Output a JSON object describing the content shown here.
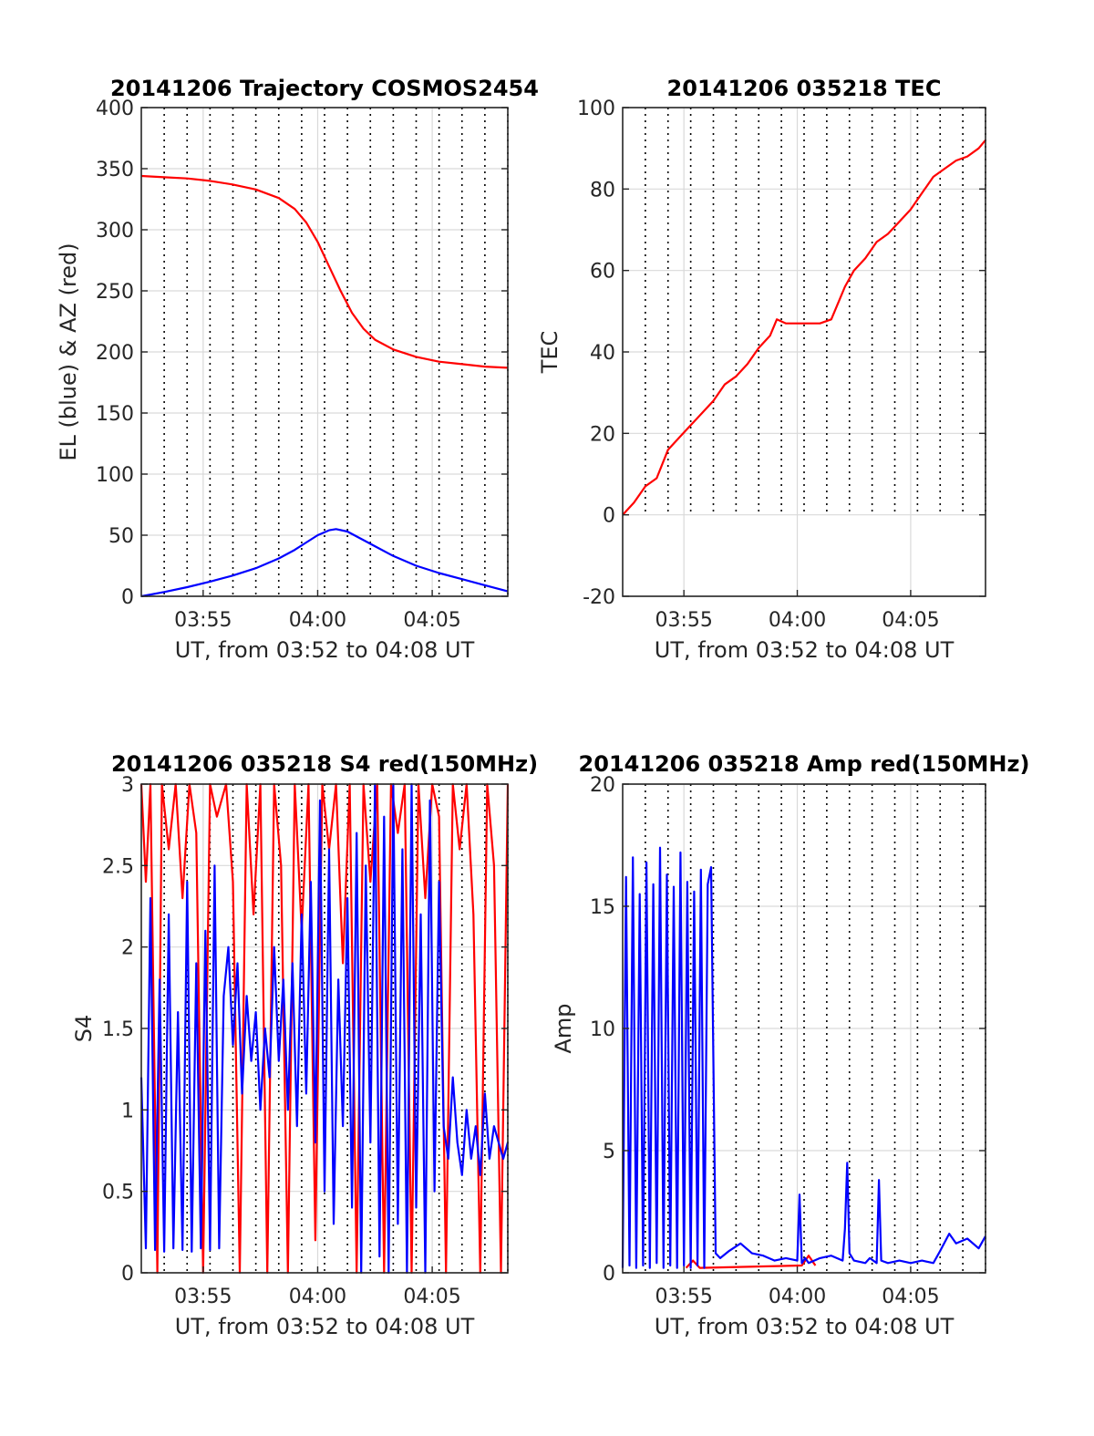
{
  "figure": {
    "panels": [
      {
        "title": "20141206 Trajectory COSMOS2454",
        "ylabel": "EL (blue) & AZ (red)",
        "xlabel": "UT, from 03:52 to 04:08 UT"
      },
      {
        "title": "20141206 035218 TEC",
        "ylabel": "TEC",
        "xlabel": "UT, from 03:52 to 04:08 UT"
      },
      {
        "title": "20141206 035218 S4 red(150MHz)",
        "ylabel": "S4",
        "xlabel": "UT, from 03:52 to 04:08 UT"
      },
      {
        "title": "20141206 035218 Amp red(150MHz)",
        "ylabel": "Amp",
        "xlabel": "UT, from 03:52 to 04:08 UT"
      }
    ]
  },
  "chart_data": [
    {
      "type": "line",
      "title": "20141206 Trajectory COSMOS2454",
      "xlabel": "UT, from 03:52 to 04:08 UT",
      "ylabel": "EL (blue) & AZ (red)",
      "xlim_minutes": [
        232.3,
        248.3
      ],
      "xticks": [
        {
          "value": 235,
          "label": "03:55"
        },
        {
          "value": 240,
          "label": "04:00"
        },
        {
          "value": 245,
          "label": "04:05"
        }
      ],
      "ylim": [
        0,
        400
      ],
      "yticks": [
        {
          "value": 0,
          "label": "0"
        },
        {
          "value": 50,
          "label": "50"
        },
        {
          "value": 100,
          "label": "100"
        },
        {
          "value": 150,
          "label": "150"
        },
        {
          "value": 200,
          "label": "200"
        },
        {
          "value": 250,
          "label": "250"
        },
        {
          "value": 300,
          "label": "300"
        },
        {
          "value": 350,
          "label": "350"
        },
        {
          "value": 400,
          "label": "400"
        }
      ],
      "grid": true,
      "vertical_dotted_lines_minutes": [
        233.3,
        234.3,
        235.3,
        236.3,
        237.3,
        238.3,
        239.3,
        240.3,
        241.3,
        242.3,
        243.3,
        244.3,
        245.3,
        246.3,
        247.3,
        248.3
      ],
      "series": [
        {
          "color": "#ff0000",
          "x": [
            232.3,
            233.3,
            234.3,
            235.3,
            236.3,
            237.3,
            238.3,
            239.0,
            239.5,
            240.0,
            240.5,
            241.0,
            241.5,
            242.0,
            242.5,
            243.3,
            244.3,
            245.3,
            246.3,
            247.3,
            248.3
          ],
          "y": [
            344,
            343,
            342,
            340,
            337,
            333,
            326,
            317,
            306,
            290,
            270,
            250,
            232,
            219,
            210,
            202,
            196,
            192,
            190,
            188,
            187
          ]
        },
        {
          "color": "#0000ff",
          "x": [
            232.3,
            233.3,
            234.3,
            235.3,
            236.3,
            237.3,
            238.3,
            239.0,
            239.5,
            240.0,
            240.5,
            240.8,
            241.3,
            242.0,
            242.5,
            243.3,
            244.3,
            245.3,
            246.3,
            247.3,
            248.3
          ],
          "y": [
            0,
            3.5,
            7.5,
            12,
            17,
            23,
            31,
            38,
            44,
            50,
            54,
            55,
            53,
            46,
            41,
            33,
            25,
            19,
            14,
            9,
            4
          ]
        }
      ]
    },
    {
      "type": "line",
      "title": "20141206 035218 TEC",
      "xlabel": "UT, from 03:52 to 04:08 UT",
      "ylabel": "TEC",
      "xlim_minutes": [
        232.3,
        248.3
      ],
      "xticks": [
        {
          "value": 235,
          "label": "03:55"
        },
        {
          "value": 240,
          "label": "04:00"
        },
        {
          "value": 245,
          "label": "04:05"
        }
      ],
      "ylim": [
        -20,
        100
      ],
      "yticks": [
        {
          "value": -20,
          "label": "-20"
        },
        {
          "value": 0,
          "label": "0"
        },
        {
          "value": 20,
          "label": "20"
        },
        {
          "value": 40,
          "label": "40"
        },
        {
          "value": 60,
          "label": "60"
        },
        {
          "value": 80,
          "label": "80"
        },
        {
          "value": 100,
          "label": "100"
        }
      ],
      "grid": true,
      "vertical_dotted_lines_minutes": [
        233.3,
        234.3,
        235.3,
        236.3,
        237.3,
        238.3,
        239.3,
        240.3,
        241.3,
        242.3,
        243.3,
        244.3,
        245.3,
        246.3,
        247.3,
        248.3
      ],
      "dotted_lines_above_y": 0,
      "series": [
        {
          "color": "#ff0000",
          "x": [
            232.3,
            232.8,
            233.3,
            233.8,
            234.3,
            234.8,
            235.3,
            235.8,
            236.3,
            236.8,
            237.3,
            237.8,
            238.3,
            238.8,
            239.1,
            239.5,
            240.0,
            240.5,
            241.0,
            241.5,
            241.8,
            242.1,
            242.5,
            243.0,
            243.5,
            244.0,
            244.5,
            245.0,
            245.5,
            246.0,
            246.5,
            247.0,
            247.5,
            248.0,
            248.3
          ],
          "y": [
            0,
            3,
            7,
            9,
            16,
            19,
            22,
            25,
            28,
            32,
            34,
            37,
            41,
            44,
            48,
            47,
            47,
            47,
            47,
            48,
            52,
            56,
            60,
            63,
            67,
            69,
            72,
            75,
            79,
            83,
            85,
            87,
            88,
            90,
            92
          ]
        }
      ]
    },
    {
      "type": "line",
      "title": "20141206 035218 S4 red(150MHz)",
      "xlabel": "UT, from 03:52 to 04:08 UT",
      "ylabel": "S4",
      "xlim_minutes": [
        232.3,
        248.3
      ],
      "xticks": [
        {
          "value": 235,
          "label": "03:55"
        },
        {
          "value": 240,
          "label": "04:00"
        },
        {
          "value": 245,
          "label": "04:05"
        }
      ],
      "ylim": [
        0,
        3
      ],
      "yticks": [
        {
          "value": 0,
          "label": "0"
        },
        {
          "value": 0.5,
          "label": "0.5"
        },
        {
          "value": 1,
          "label": "1"
        },
        {
          "value": 1.5,
          "label": "1.5"
        },
        {
          "value": 2,
          "label": "2"
        },
        {
          "value": 2.5,
          "label": "2.5"
        },
        {
          "value": 3,
          "label": "3"
        }
      ],
      "grid": true,
      "vertical_dotted_lines_minutes": [
        233.3,
        234.3,
        235.3,
        236.3,
        237.3,
        238.3,
        239.3,
        240.3,
        241.3,
        242.3,
        243.3,
        244.3,
        245.3,
        246.3,
        247.3,
        248.3
      ],
      "series": [
        {
          "color": "#ff0000",
          "x": [
            232.3,
            232.5,
            232.7,
            233.0,
            233.2,
            233.5,
            233.8,
            234.1,
            234.4,
            234.7,
            235.0,
            235.3,
            235.6,
            236.0,
            236.3,
            236.6,
            236.9,
            237.2,
            237.5,
            237.8,
            238.1,
            238.4,
            238.7,
            239.0,
            239.3,
            239.6,
            239.9,
            240.2,
            240.5,
            240.8,
            241.1,
            241.4,
            241.7,
            242.0,
            242.3,
            242.6,
            242.9,
            243.2,
            243.5,
            243.8,
            244.1,
            244.4,
            244.7,
            245.0,
            245.3,
            245.6,
            245.9,
            246.2,
            246.5,
            246.8,
            247.1,
            247.4,
            247.7,
            248.0,
            248.3
          ],
          "y": [
            3,
            2.4,
            3,
            0,
            3,
            2.6,
            3,
            2.3,
            3,
            2.7,
            0,
            3,
            2.8,
            3,
            2.4,
            0,
            3,
            2.2,
            3,
            0,
            3,
            2.5,
            0,
            3,
            2.1,
            3,
            0.2,
            3,
            2.6,
            3,
            1.9,
            3,
            0,
            3,
            2.4,
            3,
            0,
            3,
            2.7,
            3,
            0,
            3,
            2.3,
            3,
            2.8,
            0,
            3,
            2.6,
            3,
            2.2,
            0,
            3,
            2.5,
            0,
            3
          ]
        },
        {
          "color": "#0000ff",
          "x": [
            232.3,
            232.5,
            232.7,
            232.9,
            233.1,
            233.3,
            233.5,
            233.7,
            233.9,
            234.1,
            234.3,
            234.5,
            234.7,
            234.9,
            235.1,
            235.3,
            235.5,
            235.7,
            235.9,
            236.1,
            236.3,
            236.5,
            236.7,
            236.9,
            237.1,
            237.3,
            237.5,
            237.7,
            237.9,
            238.1,
            238.3,
            238.5,
            238.7,
            238.9,
            239.1,
            239.3,
            239.5,
            239.7,
            239.9,
            240.1,
            240.3,
            240.5,
            240.7,
            240.9,
            241.1,
            241.3,
            241.5,
            241.7,
            241.9,
            242.1,
            242.3,
            242.5,
            242.7,
            242.9,
            243.1,
            243.3,
            243.5,
            243.7,
            243.9,
            244.1,
            244.3,
            244.5,
            244.7,
            244.9,
            245.1,
            245.3,
            245.5,
            245.7,
            245.9,
            246.1,
            246.3,
            246.5,
            246.7,
            246.9,
            247.1,
            247.3,
            247.5,
            247.7,
            247.9,
            248.1,
            248.3
          ],
          "y": [
            1.2,
            0.15,
            2.3,
            0.14,
            1.8,
            0.13,
            2.2,
            0.15,
            1.6,
            0.14,
            2.4,
            0.13,
            1.9,
            0.15,
            2.1,
            0.14,
            2.5,
            0.15,
            1.7,
            2.0,
            1.4,
            1.9,
            1.1,
            1.7,
            1.3,
            1.6,
            1.0,
            1.5,
            1.2,
            2.0,
            1.3,
            1.8,
            1.0,
            1.9,
            0.9,
            2.2,
            1.1,
            2.4,
            0.8,
            2.9,
            0.5,
            2.6,
            0.3,
            1.8,
            0.9,
            2.3,
            0.4,
            2.7,
            0.0,
            2.5,
            0.8,
            3.0,
            0.1,
            2.8,
            0.0,
            3.0,
            0.3,
            2.6,
            0.0,
            3.0,
            0.4,
            2.2,
            0.0,
            2.9,
            0.5,
            2.4,
            0.9,
            0.7,
            1.2,
            0.8,
            0.6,
            1.0,
            0.7,
            0.9,
            0.6,
            1.1,
            0.7,
            0.9,
            0.8,
            0.7,
            0.8
          ]
        }
      ]
    },
    {
      "type": "line",
      "title": "20141206 035218 Amp red(150MHz)",
      "xlabel": "UT, from 03:52 to 04:08 UT",
      "ylabel": "Amp",
      "xlim_minutes": [
        232.3,
        248.3
      ],
      "xticks": [
        {
          "value": 235,
          "label": "03:55"
        },
        {
          "value": 240,
          "label": "04:00"
        },
        {
          "value": 245,
          "label": "04:05"
        }
      ],
      "ylim": [
        0,
        20
      ],
      "yticks": [
        {
          "value": 0,
          "label": "0"
        },
        {
          "value": 5,
          "label": "5"
        },
        {
          "value": 10,
          "label": "10"
        },
        {
          "value": 15,
          "label": "15"
        },
        {
          "value": 20,
          "label": "20"
        }
      ],
      "grid": true,
      "vertical_dotted_lines_minutes": [
        233.3,
        234.3,
        235.3,
        236.3,
        237.3,
        238.3,
        239.3,
        240.3,
        241.3,
        242.3,
        243.3,
        244.3,
        245.3,
        246.3,
        247.3,
        248.3
      ],
      "series": [
        {
          "color": "#ff0000",
          "x": [
            235.1,
            235.4,
            235.7,
            240.2,
            240.5,
            240.8
          ],
          "y": [
            0.2,
            0.5,
            0.2,
            0.3,
            0.7,
            0.3
          ]
        },
        {
          "color": "#0000ff",
          "x": [
            232.3,
            232.45,
            232.6,
            232.75,
            232.9,
            233.05,
            233.2,
            233.35,
            233.5,
            233.65,
            233.8,
            233.95,
            234.1,
            234.25,
            234.4,
            234.55,
            234.7,
            234.85,
            235.0,
            235.15,
            235.3,
            235.45,
            235.6,
            235.75,
            235.9,
            236.05,
            236.2,
            236.4,
            236.6,
            237.0,
            237.5,
            238.0,
            238.5,
            239.0,
            239.5,
            240.0,
            240.1,
            240.2,
            240.35,
            240.5,
            241.0,
            241.5,
            242.0,
            242.1,
            242.2,
            242.3,
            242.5,
            243.0,
            243.2,
            243.5,
            243.6,
            243.7,
            244.0,
            244.5,
            245.0,
            245.5,
            246.0,
            246.3,
            246.7,
            247.0,
            247.5,
            248.0,
            248.3
          ],
          "y": [
            0.2,
            16.2,
            0.3,
            17.0,
            0.2,
            15.5,
            0.3,
            16.8,
            0.2,
            15.9,
            0.4,
            17.4,
            0.2,
            16.3,
            0.3,
            15.8,
            0.2,
            17.2,
            0.3,
            16.0,
            0.2,
            15.6,
            0.3,
            16.5,
            0.2,
            15.9,
            16.6,
            0.8,
            0.6,
            0.9,
            1.2,
            0.8,
            0.7,
            0.5,
            0.6,
            0.5,
            3.2,
            0.4,
            0.6,
            0.4,
            0.6,
            0.7,
            0.5,
            1.8,
            4.5,
            0.8,
            0.5,
            0.4,
            0.6,
            0.4,
            3.8,
            0.5,
            0.4,
            0.5,
            0.4,
            0.5,
            0.4,
            0.9,
            1.6,
            1.2,
            1.4,
            1.0,
            1.5
          ]
        }
      ]
    }
  ]
}
